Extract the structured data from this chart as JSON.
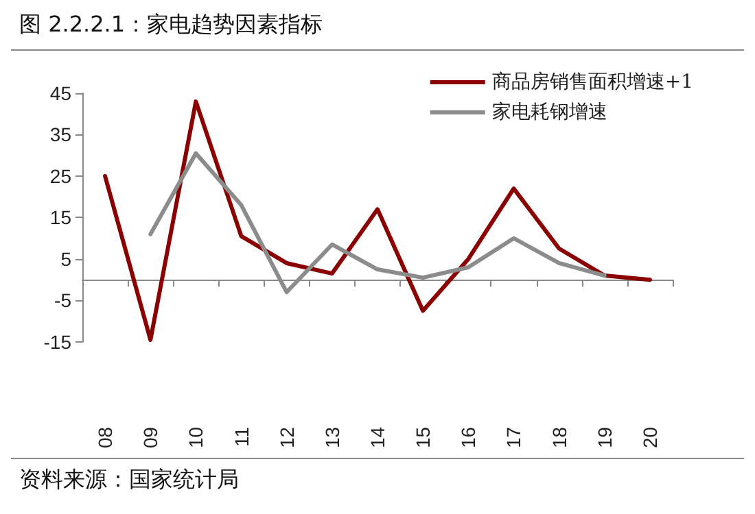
{
  "chart_data": {
    "type": "line",
    "title": "图 2.2.2.1：家电趋势因素指标",
    "annotations": [
      "资料来源：国家统计局"
    ],
    "categories": [
      "08",
      "09",
      "10",
      "11",
      "12",
      "13",
      "14",
      "15",
      "16",
      "17",
      "18",
      "19",
      "20"
    ],
    "series": [
      {
        "name": "商品房销售面积增速+1",
        "color": "#8b0000",
        "values": [
          25,
          -14.5,
          43,
          10.5,
          4,
          1.5,
          17,
          -7.5,
          5,
          22,
          7.5,
          1,
          0
        ]
      },
      {
        "name": "家电耗钢增速",
        "color": "#8c8c8c",
        "values": [
          null,
          11,
          30.5,
          18,
          -3,
          8.5,
          2.5,
          0.5,
          3,
          10,
          4,
          1,
          null
        ]
      }
    ],
    "ylim": [
      -15,
      45
    ],
    "yticks": [
      -15,
      -5,
      5,
      15,
      25,
      35,
      45
    ],
    "grid": false,
    "legend": "top right",
    "marker": "none",
    "line_style": "solid"
  }
}
